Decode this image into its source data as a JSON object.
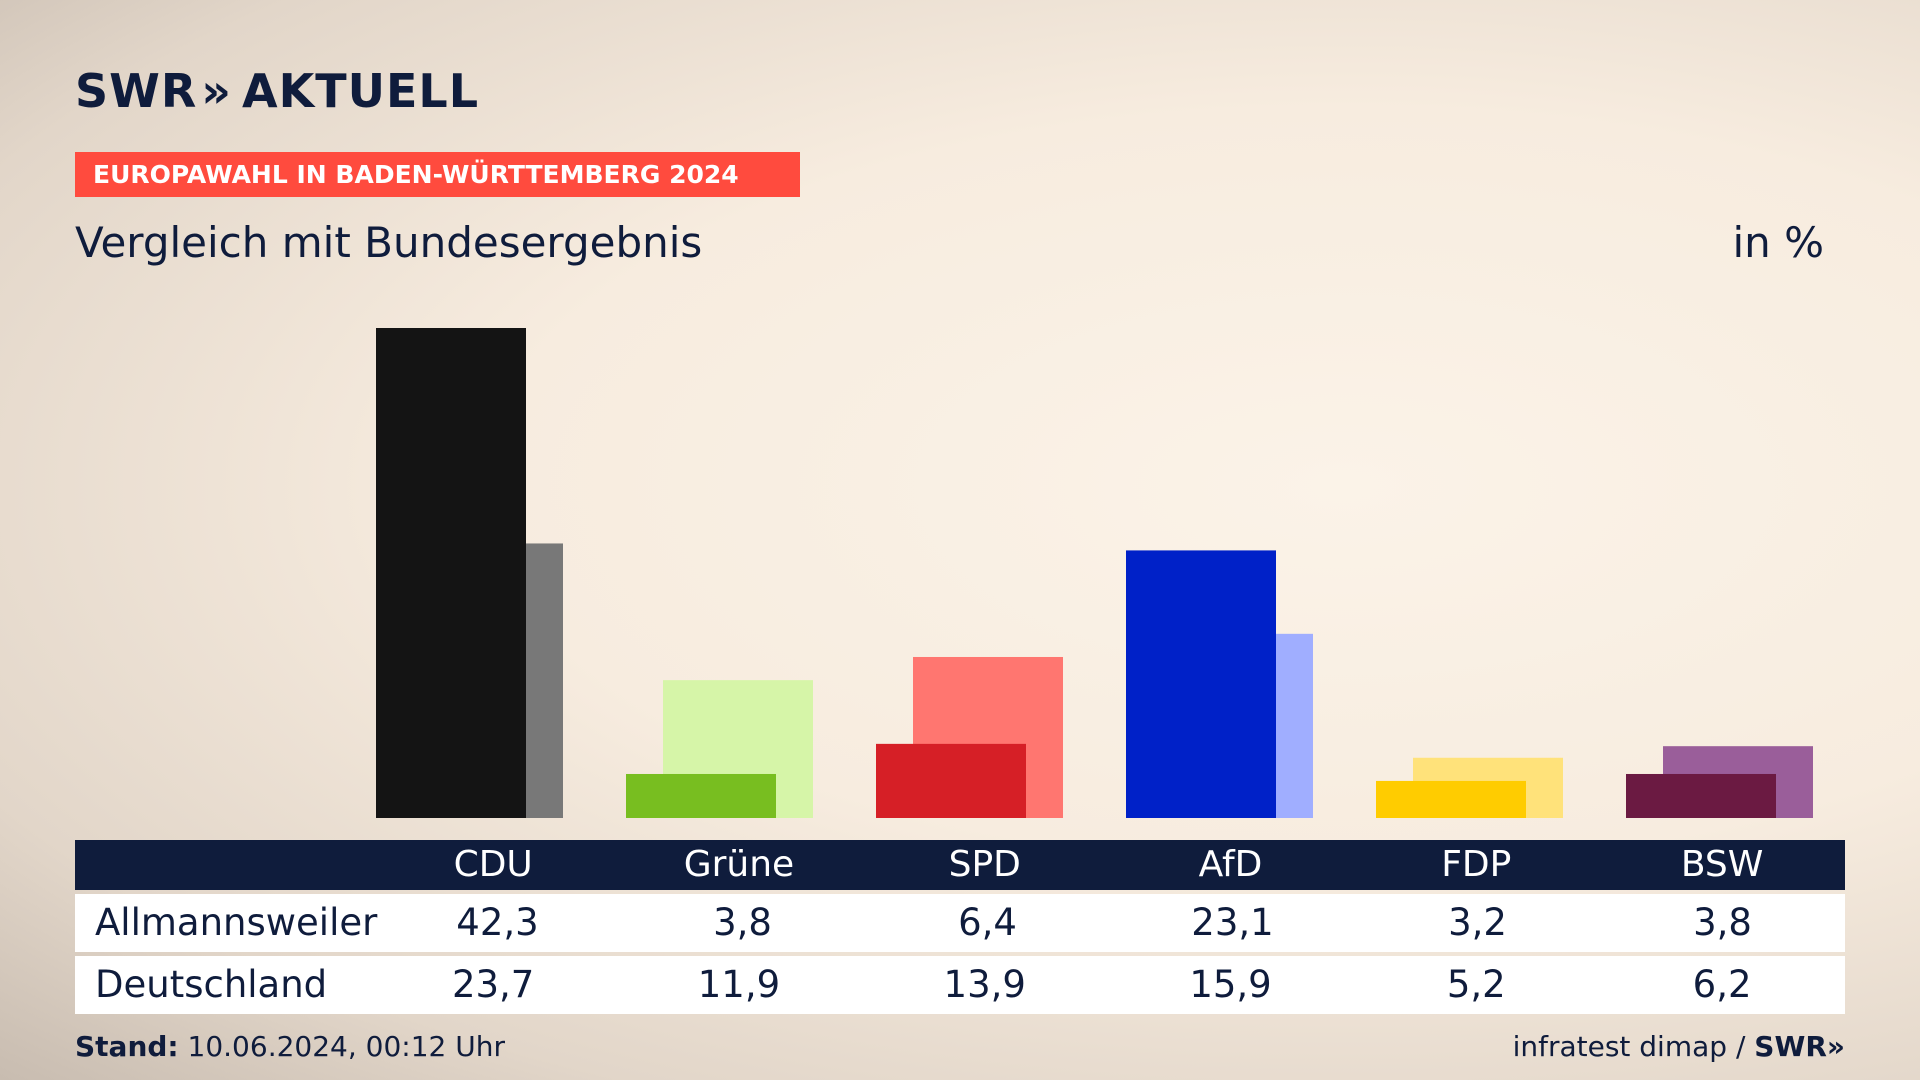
{
  "logo": {
    "swr": "SWR",
    "arrows": "»",
    "aktuell": "AKTUELL"
  },
  "kicker": "EUROPAWAHL IN BADEN-WÜRTTEMBERG 2024",
  "subtitle": "Vergleich mit Bundesergebnis",
  "unit": "in %",
  "chart_data": {
    "type": "bar",
    "categories": [
      "CDU",
      "Grüne",
      "SPD",
      "AfD",
      "FDP",
      "BSW"
    ],
    "series": [
      {
        "name": "Allmannsweiler",
        "values": [
          42.3,
          3.8,
          6.4,
          23.1,
          3.2,
          3.8
        ]
      },
      {
        "name": "Deutschland",
        "values": [
          23.7,
          11.9,
          13.9,
          15.9,
          5.2,
          6.2
        ]
      }
    ],
    "colors": {
      "primary": [
        "#141414",
        "#78be20",
        "#d61f26",
        "#0021c8",
        "#ffcc00",
        "#6b1a42"
      ],
      "secondary": [
        "#787878",
        "#d6f5a8",
        "#ff7670",
        "#a0aeff",
        "#ffe27a",
        "#9a5e9a"
      ]
    },
    "ylim": [
      0,
      45
    ]
  },
  "footer": {
    "stand_label": "Stand:",
    "stand_value": "10.06.2024, 00:12 Uhr",
    "source": "infratest dimap",
    "slash": "/",
    "mini_logo": "SWR»"
  }
}
